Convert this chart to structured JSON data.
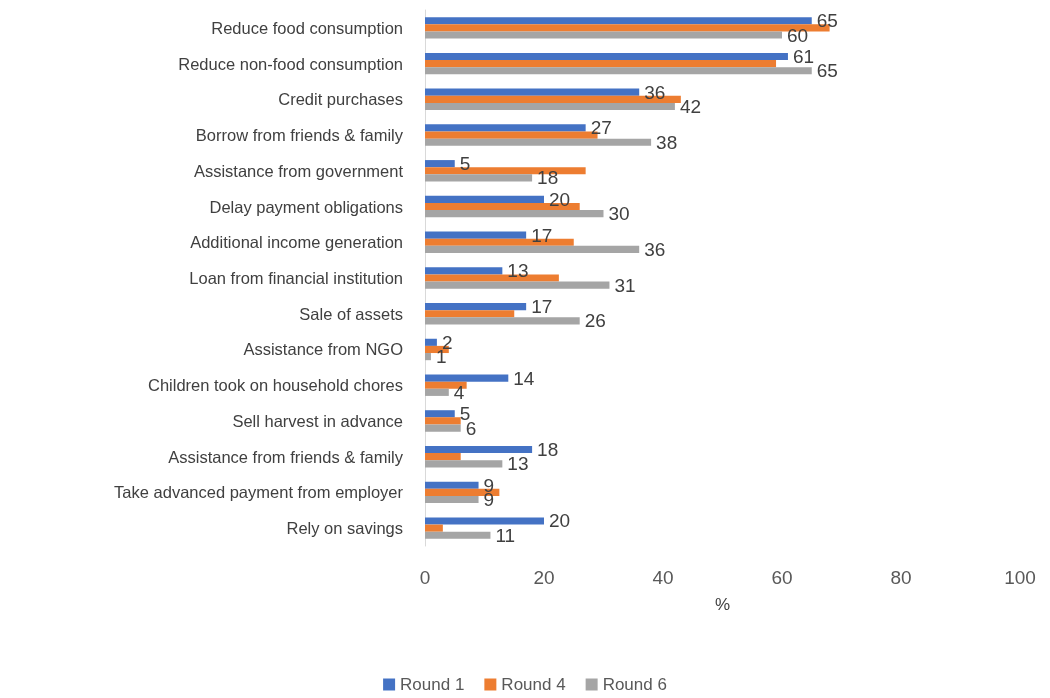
{
  "chart_data": {
    "type": "bar",
    "orientation": "horizontal",
    "xlabel": "%",
    "categories": [
      "Reduce food consumption",
      "Reduce non-food consumption",
      "Credit purchases",
      "Borrow from friends & family",
      "Assistance from government",
      "Delay payment obligations",
      "Additional income generation",
      "Loan from financial institution",
      "Sale of assets",
      "Assistance from NGO",
      "Children took on household chores",
      "Sell harvest in advance",
      "Assistance from friends & family",
      "Take advanced payment from employer",
      "Rely on savings"
    ],
    "series": [
      {
        "name": "Round 1",
        "color": "#4472c4",
        "values": [
          65,
          61,
          36,
          27,
          5,
          20,
          17,
          13,
          17,
          2,
          14,
          5,
          18,
          9,
          20
        ],
        "value_labels": [
          "65",
          "61",
          "36",
          "27",
          "5",
          "20",
          "17",
          "13",
          "17",
          "2",
          "14",
          "5",
          "18",
          "9",
          "20"
        ]
      },
      {
        "name": "Round 4",
        "color": "#ed7d31",
        "values": [
          68,
          59,
          43,
          29,
          27,
          26,
          25,
          22.5,
          15,
          4,
          7,
          6,
          6,
          12.5,
          3
        ]
      },
      {
        "name": "Round 6",
        "color": "#a5a5a5",
        "values": [
          60,
          65,
          42,
          38,
          18,
          30,
          36,
          31,
          26,
          1,
          4,
          6,
          13,
          9,
          11
        ],
        "value_labels": [
          "60",
          "65",
          "42",
          "38",
          "18",
          "30",
          "36",
          "31",
          "26",
          "1",
          "4",
          "6",
          "13",
          "9",
          "11"
        ]
      }
    ],
    "xlim": [
      0,
      100
    ],
    "xticks": [
      0,
      20,
      40,
      60,
      80,
      100
    ],
    "grid": false,
    "legend": "bottom"
  }
}
